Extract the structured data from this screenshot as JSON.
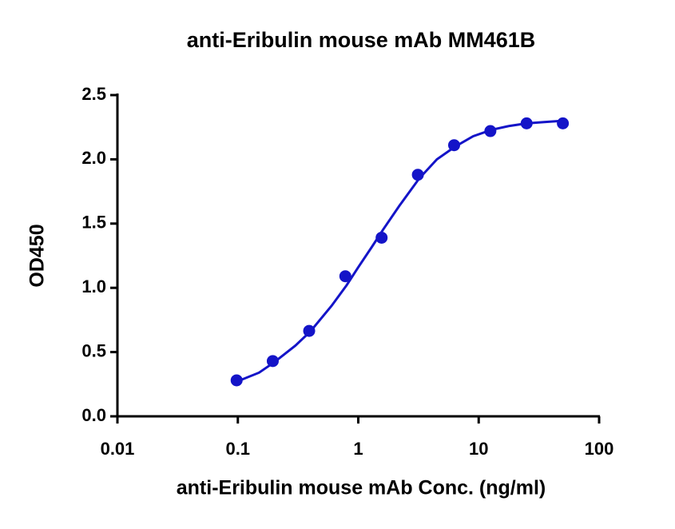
{
  "chart_data": {
    "type": "scatter",
    "title": "anti-Eribulin mouse mAb MM461B",
    "x_label": "anti-Eribulin  mouse mAb Conc. (ng/ml)",
    "y_label": "OD450",
    "x_scale": "log",
    "color": "#1414c8",
    "x": [
      0.0977,
      0.195,
      0.391,
      0.781,
      1.5625,
      3.125,
      6.25,
      12.5,
      25,
      50
    ],
    "values": [
      0.28,
      0.43,
      0.665,
      1.09,
      1.39,
      1.88,
      2.11,
      2.22,
      2.28,
      2.28
    ],
    "curve": {
      "x": [
        0.0977,
        0.15,
        0.2,
        0.3,
        0.4,
        0.6,
        0.8,
        1,
        1.3,
        1.6,
        2.2,
        3.2,
        4.5,
        6.4,
        9,
        12.8,
        18,
        25,
        35,
        50
      ],
      "values": [
        0.27,
        0.34,
        0.42,
        0.55,
        0.66,
        0.86,
        1.02,
        1.16,
        1.32,
        1.45,
        1.64,
        1.85,
        2.0,
        2.1,
        2.18,
        2.23,
        2.26,
        2.28,
        2.29,
        2.3
      ]
    },
    "xlim": [
      0.01,
      100
    ],
    "xticks": [
      0.01,
      0.1,
      1,
      10,
      100
    ],
    "ylim": [
      0,
      2.5
    ],
    "yticks": [
      {
        "value": 0,
        "label": "0.0"
      },
      {
        "value": 0.5,
        "label": "0.5"
      },
      {
        "value": 1,
        "label": "1.0"
      },
      {
        "value": 1.5,
        "label": "1.5"
      },
      {
        "value": 2,
        "label": "2.0"
      },
      {
        "value": 2.5,
        "label": "2.5"
      }
    ],
    "grid": false
  }
}
